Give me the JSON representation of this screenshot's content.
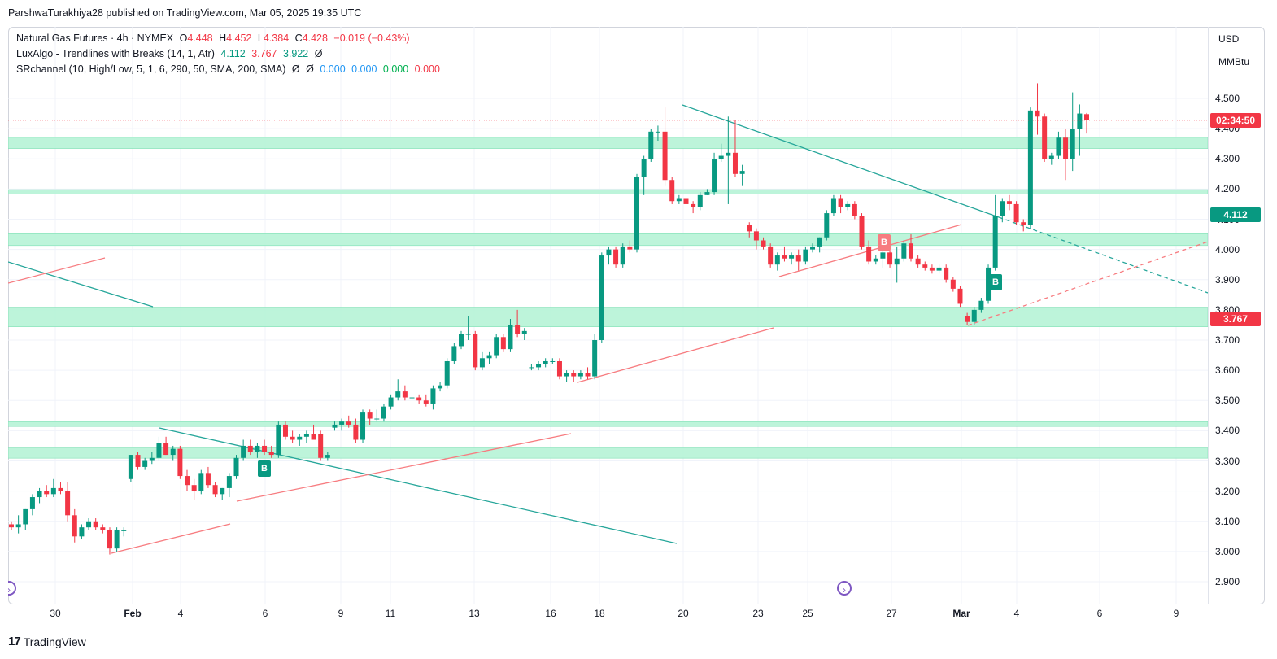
{
  "header": {
    "publisher_line": "ParshwaTurakhiya28 published on TradingView.com, Mar 05, 2025 19:35 UTC"
  },
  "legend": {
    "symbol": "Natural Gas Futures · 4h · NYMEX",
    "o_label": "O",
    "o_value": "4.448",
    "h_label": "H",
    "h_value": "4.452",
    "l_label": "L",
    "l_value": "4.384",
    "c_label": "C",
    "c_value": "4.428",
    "change": "−0.019 (−0.43%)",
    "indicator1_name": "LuxAlgo - Trendlines with Breaks (14, 1, Atr)",
    "indicator1_v1": "4.112",
    "indicator1_v2": "3.767",
    "indicator1_v3": "3.922",
    "indicator1_v4": "Ø",
    "indicator2_name": "SRchannel (10, High/Low, 5, 1, 6, 290, 50, SMA, 200, SMA)",
    "indicator2_v1": "Ø",
    "indicator2_v2": "Ø",
    "indicator2_v3": "0.000",
    "indicator2_v4": "0.000",
    "indicator2_v5": "0.000",
    "indicator2_v6": "0.000"
  },
  "price_axis": {
    "currency": "USD",
    "unit": "MMBtu",
    "ticks": [
      "4.500",
      "4.400",
      "4.300",
      "4.200",
      "4.100",
      "4.000",
      "3.900",
      "3.800",
      "3.700",
      "3.600",
      "3.500",
      "3.400",
      "3.300",
      "3.200",
      "3.100",
      "3.000",
      "2.900"
    ],
    "countdown": "02:34:50",
    "tag_upper": "4.112",
    "tag_lower": "3.767"
  },
  "time_axis": {
    "labels": [
      "30",
      "Feb",
      "4",
      "6",
      "9",
      "11",
      "13",
      "16",
      "18",
      "20",
      "23",
      "25",
      "27",
      "Mar",
      "4",
      "6",
      "9"
    ]
  },
  "signals": {
    "break_label": "B"
  },
  "footer": {
    "brand": "TradingView",
    "logo_glyph": "17"
  },
  "colors": {
    "up": "#089981",
    "down": "#f23645",
    "zone": "#b2f2d4",
    "trend_down": "#26a69a",
    "trend_up": "#f77c80"
  },
  "chart_data": {
    "type": "candlestick",
    "title": "Natural Gas Futures · 4h · NYMEX",
    "ylim": [
      2.86,
      4.62
    ],
    "support_resistance_zones": [
      [
        4.334,
        4.371
      ],
      [
        4.184,
        4.198
      ],
      [
        4.013,
        4.052
      ],
      [
        3.744,
        3.809
      ],
      [
        3.414,
        3.43
      ],
      [
        3.309,
        3.343
      ]
    ],
    "last_price": 4.428,
    "candles": [
      {
        "x": "Jan 29",
        "o": 3.09,
        "h": 3.1,
        "l": 3.07,
        "c": 3.08
      },
      {
        "x": "Jan 29",
        "o": 3.08,
        "h": 3.12,
        "l": 3.06,
        "c": 3.09
      },
      {
        "x": "Jan 29",
        "o": 3.09,
        "h": 3.14,
        "l": 3.07,
        "c": 3.14
      },
      {
        "x": "Jan 29",
        "o": 3.14,
        "h": 3.19,
        "l": 3.12,
        "c": 3.18
      },
      {
        "x": "Jan 30",
        "o": 3.18,
        "h": 3.21,
        "l": 3.16,
        "c": 3.2
      },
      {
        "x": "Jan 30",
        "o": 3.2,
        "h": 3.22,
        "l": 3.18,
        "c": 3.19
      },
      {
        "x": "Jan 30",
        "o": 3.19,
        "h": 3.24,
        "l": 3.18,
        "c": 3.21
      },
      {
        "x": "Jan 30",
        "o": 3.21,
        "h": 3.23,
        "l": 3.19,
        "c": 3.2
      },
      {
        "x": "Jan 31",
        "o": 3.2,
        "h": 3.23,
        "l": 3.1,
        "c": 3.12
      },
      {
        "x": "Jan 31",
        "o": 3.12,
        "h": 3.14,
        "l": 3.03,
        "c": 3.05
      },
      {
        "x": "Jan 31",
        "o": 3.05,
        "h": 3.09,
        "l": 3.04,
        "c": 3.08
      },
      {
        "x": "Jan 31",
        "o": 3.08,
        "h": 3.11,
        "l": 3.07,
        "c": 3.1
      },
      {
        "x": "Jan 31",
        "o": 3.1,
        "h": 3.11,
        "l": 3.07,
        "c": 3.08
      },
      {
        "x": "Jan 31",
        "o": 3.08,
        "h": 3.09,
        "l": 3.06,
        "c": 3.07
      },
      {
        "x": "Feb 2",
        "o": 3.07,
        "h": 3.08,
        "l": 2.99,
        "c": 3.01
      },
      {
        "x": "Feb 2",
        "o": 3.01,
        "h": 3.08,
        "l": 3.0,
        "c": 3.07
      },
      {
        "x": "Feb 2",
        "o": 3.07,
        "h": 3.08,
        "l": 3.05,
        "c": 3.07
      },
      {
        "x": "Feb 3",
        "o": 3.24,
        "h": 3.32,
        "l": 3.23,
        "c": 3.32
      },
      {
        "x": "Feb 3",
        "o": 3.32,
        "h": 3.33,
        "l": 3.27,
        "c": 3.28
      },
      {
        "x": "Feb 3",
        "o": 3.28,
        "h": 3.31,
        "l": 3.27,
        "c": 3.3
      },
      {
        "x": "Feb 3",
        "o": 3.3,
        "h": 3.33,
        "l": 3.29,
        "c": 3.31
      },
      {
        "x": "Feb 3",
        "o": 3.31,
        "h": 3.38,
        "l": 3.3,
        "c": 3.36
      },
      {
        "x": "Feb 4",
        "o": 3.36,
        "h": 3.38,
        "l": 3.32,
        "c": 3.32
      },
      {
        "x": "Feb 4",
        "o": 3.32,
        "h": 3.35,
        "l": 3.3,
        "c": 3.34
      },
      {
        "x": "Feb 4",
        "o": 3.34,
        "h": 3.35,
        "l": 3.24,
        "c": 3.25
      },
      {
        "x": "Feb 4",
        "o": 3.25,
        "h": 3.27,
        "l": 3.2,
        "c": 3.22
      },
      {
        "x": "Feb 5",
        "o": 3.22,
        "h": 3.24,
        "l": 3.17,
        "c": 3.2
      },
      {
        "x": "Feb 5",
        "o": 3.2,
        "h": 3.27,
        "l": 3.19,
        "c": 3.26
      },
      {
        "x": "Feb 5",
        "o": 3.26,
        "h": 3.28,
        "l": 3.21,
        "c": 3.22
      },
      {
        "x": "Feb 5",
        "o": 3.22,
        "h": 3.23,
        "l": 3.18,
        "c": 3.19
      },
      {
        "x": "Feb 5",
        "o": 3.19,
        "h": 3.21,
        "l": 3.17,
        "c": 3.21
      },
      {
        "x": "Feb 6",
        "o": 3.21,
        "h": 3.26,
        "l": 3.18,
        "c": 3.25
      },
      {
        "x": "Feb 6",
        "o": 3.25,
        "h": 3.32,
        "l": 3.24,
        "c": 3.31
      },
      {
        "x": "Feb 6",
        "o": 3.31,
        "h": 3.37,
        "l": 3.3,
        "c": 3.35
      },
      {
        "x": "Feb 6",
        "o": 3.35,
        "h": 3.37,
        "l": 3.32,
        "c": 3.33
      },
      {
        "x": "Feb 6",
        "o": 3.33,
        "h": 3.36,
        "l": 3.31,
        "c": 3.35
      },
      {
        "x": "Feb 7",
        "o": 3.35,
        "h": 3.37,
        "l": 3.32,
        "c": 3.33
      },
      {
        "x": "Feb 7",
        "o": 3.33,
        "h": 3.35,
        "l": 3.31,
        "c": 3.32
      },
      {
        "x": "Feb 7",
        "o": 3.32,
        "h": 3.43,
        "l": 3.31,
        "c": 3.42
      },
      {
        "x": "Feb 7",
        "o": 3.42,
        "h": 3.43,
        "l": 3.37,
        "c": 3.38
      },
      {
        "x": "Feb 7",
        "o": 3.38,
        "h": 3.4,
        "l": 3.36,
        "c": 3.37
      },
      {
        "x": "Feb 9",
        "o": 3.37,
        "h": 3.39,
        "l": 3.35,
        "c": 3.38
      },
      {
        "x": "Feb 9",
        "o": 3.38,
        "h": 3.4,
        "l": 3.36,
        "c": 3.39
      },
      {
        "x": "Feb 9",
        "o": 3.39,
        "h": 3.42,
        "l": 3.37,
        "c": 3.37
      },
      {
        "x": "Feb 9",
        "o": 3.39,
        "h": 3.4,
        "l": 3.3,
        "c": 3.31
      },
      {
        "x": "Feb 9",
        "o": 3.31,
        "h": 3.33,
        "l": 3.3,
        "c": 3.32
      },
      {
        "x": "Feb 10",
        "o": 3.41,
        "h": 3.43,
        "l": 3.4,
        "c": 3.42
      },
      {
        "x": "Feb 10",
        "o": 3.42,
        "h": 3.44,
        "l": 3.4,
        "c": 3.43
      },
      {
        "x": "Feb 10",
        "o": 3.43,
        "h": 3.45,
        "l": 3.41,
        "c": 3.42
      },
      {
        "x": "Feb 10",
        "o": 3.42,
        "h": 3.44,
        "l": 3.36,
        "c": 3.37
      },
      {
        "x": "Feb 10",
        "o": 3.37,
        "h": 3.47,
        "l": 3.36,
        "c": 3.46
      },
      {
        "x": "Feb 11",
        "o": 3.46,
        "h": 3.47,
        "l": 3.42,
        "c": 3.44
      },
      {
        "x": "Feb 11",
        "o": 3.44,
        "h": 3.47,
        "l": 3.43,
        "c": 3.44
      },
      {
        "x": "Feb 11",
        "o": 3.44,
        "h": 3.49,
        "l": 3.43,
        "c": 3.48
      },
      {
        "x": "Feb 11",
        "o": 3.48,
        "h": 3.52,
        "l": 3.47,
        "c": 3.51
      },
      {
        "x": "Feb 12",
        "o": 3.51,
        "h": 3.57,
        "l": 3.5,
        "c": 3.53
      },
      {
        "x": "Feb 12",
        "o": 3.53,
        "h": 3.55,
        "l": 3.5,
        "c": 3.51
      },
      {
        "x": "Feb 12",
        "o": 3.51,
        "h": 3.53,
        "l": 3.5,
        "c": 3.51
      },
      {
        "x": "Feb 12",
        "o": 3.51,
        "h": 3.52,
        "l": 3.49,
        "c": 3.5
      },
      {
        "x": "Feb 12",
        "o": 3.5,
        "h": 3.52,
        "l": 3.48,
        "c": 3.49
      },
      {
        "x": "Feb 12",
        "o": 3.49,
        "h": 3.55,
        "l": 3.47,
        "c": 3.54
      },
      {
        "x": "Feb 13",
        "o": 3.54,
        "h": 3.56,
        "l": 3.53,
        "c": 3.55
      },
      {
        "x": "Feb 13",
        "o": 3.55,
        "h": 3.64,
        "l": 3.54,
        "c": 3.63
      },
      {
        "x": "Feb 13",
        "o": 3.63,
        "h": 3.69,
        "l": 3.62,
        "c": 3.68
      },
      {
        "x": "Feb 13",
        "o": 3.68,
        "h": 3.73,
        "l": 3.67,
        "c": 3.72
      },
      {
        "x": "Feb 13",
        "o": 3.72,
        "h": 3.78,
        "l": 3.7,
        "c": 3.72
      },
      {
        "x": "Feb 14",
        "o": 3.72,
        "h": 3.73,
        "l": 3.6,
        "c": 3.61
      },
      {
        "x": "Feb 14",
        "o": 3.61,
        "h": 3.66,
        "l": 3.6,
        "c": 3.64
      },
      {
        "x": "Feb 14",
        "o": 3.64,
        "h": 3.66,
        "l": 3.62,
        "c": 3.65
      },
      {
        "x": "Feb 14",
        "o": 3.65,
        "h": 3.72,
        "l": 3.64,
        "c": 3.71
      },
      {
        "x": "Feb 14",
        "o": 3.71,
        "h": 3.72,
        "l": 3.66,
        "c": 3.67
      },
      {
        "x": "Feb 15",
        "o": 3.67,
        "h": 3.77,
        "l": 3.66,
        "c": 3.75
      },
      {
        "x": "Feb 15",
        "o": 3.75,
        "h": 3.8,
        "l": 3.71,
        "c": 3.72
      },
      {
        "x": "Feb 15",
        "o": 3.72,
        "h": 3.74,
        "l": 3.7,
        "c": 3.73
      },
      {
        "x": "Feb 17",
        "o": 3.61,
        "h": 3.62,
        "l": 3.6,
        "c": 3.61
      },
      {
        "x": "Feb 17",
        "o": 3.61,
        "h": 3.63,
        "l": 3.6,
        "c": 3.62
      },
      {
        "x": "Feb 17",
        "o": 3.62,
        "h": 3.64,
        "l": 3.61,
        "c": 3.63
      },
      {
        "x": "Feb 17",
        "o": 3.63,
        "h": 3.64,
        "l": 3.62,
        "c": 3.63
      },
      {
        "x": "Feb 17",
        "o": 3.63,
        "h": 3.64,
        "l": 3.57,
        "c": 3.58
      },
      {
        "x": "Feb 17",
        "o": 3.58,
        "h": 3.6,
        "l": 3.56,
        "c": 3.59
      },
      {
        "x": "Feb 18",
        "o": 3.59,
        "h": 3.6,
        "l": 3.56,
        "c": 3.58
      },
      {
        "x": "Feb 18",
        "o": 3.58,
        "h": 3.6,
        "l": 3.57,
        "c": 3.59
      },
      {
        "x": "Feb 18",
        "o": 3.59,
        "h": 3.61,
        "l": 3.57,
        "c": 3.58
      },
      {
        "x": "Feb 18",
        "o": 3.58,
        "h": 3.72,
        "l": 3.57,
        "c": 3.7
      },
      {
        "x": "Feb 18",
        "o": 3.7,
        "h": 3.99,
        "l": 3.69,
        "c": 3.98
      },
      {
        "x": "Feb 19",
        "o": 3.98,
        "h": 4.01,
        "l": 3.95,
        "c": 4.0
      },
      {
        "x": "Feb 19",
        "o": 4.0,
        "h": 4.01,
        "l": 3.94,
        "c": 3.95
      },
      {
        "x": "Feb 19",
        "o": 3.95,
        "h": 4.02,
        "l": 3.94,
        "c": 4.01
      },
      {
        "x": "Feb 19",
        "o": 4.01,
        "h": 4.03,
        "l": 3.99,
        "c": 4.0
      },
      {
        "x": "Feb 19",
        "o": 4.0,
        "h": 4.25,
        "l": 3.99,
        "c": 4.24
      },
      {
        "x": "Feb 19",
        "o": 4.24,
        "h": 4.31,
        "l": 4.18,
        "c": 4.3
      },
      {
        "x": "Feb 20",
        "o": 4.3,
        "h": 4.4,
        "l": 4.29,
        "c": 4.39
      },
      {
        "x": "Feb 20",
        "o": 4.39,
        "h": 4.41,
        "l": 4.36,
        "c": 4.39
      },
      {
        "x": "Feb 20",
        "o": 4.39,
        "h": 4.47,
        "l": 4.21,
        "c": 4.23
      },
      {
        "x": "Feb 20",
        "o": 4.23,
        "h": 4.24,
        "l": 4.15,
        "c": 4.16
      },
      {
        "x": "Feb 21",
        "o": 4.16,
        "h": 4.18,
        "l": 4.15,
        "c": 4.17
      },
      {
        "x": "Feb 21",
        "o": 4.17,
        "h": 4.18,
        "l": 4.04,
        "c": 4.15
      },
      {
        "x": "Feb 21",
        "o": 4.15,
        "h": 4.16,
        "l": 4.12,
        "c": 4.14
      },
      {
        "x": "Feb 21",
        "o": 4.14,
        "h": 4.19,
        "l": 4.13,
        "c": 4.18
      },
      {
        "x": "Feb 21",
        "o": 4.18,
        "h": 4.2,
        "l": 4.18,
        "c": 4.19
      },
      {
        "x": "Feb 22",
        "o": 4.19,
        "h": 4.32,
        "l": 4.18,
        "c": 4.3
      },
      {
        "x": "Feb 22",
        "o": 4.3,
        "h": 4.35,
        "l": 4.29,
        "c": 4.31
      },
      {
        "x": "Feb 22",
        "o": 4.31,
        "h": 4.44,
        "l": 4.15,
        "c": 4.32
      },
      {
        "x": "Feb 22",
        "o": 4.32,
        "h": 4.43,
        "l": 4.24,
        "c": 4.25
      },
      {
        "x": "Feb 22",
        "o": 4.25,
        "h": 4.28,
        "l": 4.21,
        "c": 4.26
      },
      {
        "x": "Feb 23",
        "o": 4.08,
        "h": 4.09,
        "l": 4.04,
        "c": 4.06
      },
      {
        "x": "Feb 23",
        "o": 4.06,
        "h": 4.07,
        "l": 4.0,
        "c": 4.03
      },
      {
        "x": "Feb 23",
        "o": 4.03,
        "h": 4.04,
        "l": 4.0,
        "c": 4.01
      },
      {
        "x": "Feb 24",
        "o": 4.01,
        "h": 4.02,
        "l": 3.94,
        "c": 3.95
      },
      {
        "x": "Feb 24",
        "o": 3.95,
        "h": 3.99,
        "l": 3.93,
        "c": 3.98
      },
      {
        "x": "Feb 24",
        "o": 3.98,
        "h": 4.01,
        "l": 3.96,
        "c": 3.97
      },
      {
        "x": "Feb 24",
        "o": 3.97,
        "h": 3.99,
        "l": 3.95,
        "c": 3.98
      },
      {
        "x": "Feb 24",
        "o": 3.98,
        "h": 4.0,
        "l": 3.93,
        "c": 3.96
      },
      {
        "x": "Feb 25",
        "o": 3.96,
        "h": 4.01,
        "l": 3.95,
        "c": 4.0
      },
      {
        "x": "Feb 25",
        "o": 4.0,
        "h": 4.02,
        "l": 3.99,
        "c": 4.01
      },
      {
        "x": "Feb 25",
        "o": 4.01,
        "h": 4.04,
        "l": 3.99,
        "c": 4.04
      },
      {
        "x": "Feb 25",
        "o": 4.04,
        "h": 4.13,
        "l": 4.03,
        "c": 4.12
      },
      {
        "x": "Feb 25",
        "o": 4.12,
        "h": 4.18,
        "l": 4.11,
        "c": 4.17
      },
      {
        "x": "Feb 26",
        "o": 4.17,
        "h": 4.18,
        "l": 4.12,
        "c": 4.14
      },
      {
        "x": "Feb 26",
        "o": 4.14,
        "h": 4.16,
        "l": 4.13,
        "c": 4.15
      },
      {
        "x": "Feb 26",
        "o": 4.15,
        "h": 4.16,
        "l": 4.1,
        "c": 4.11
      },
      {
        "x": "Feb 26",
        "o": 4.11,
        "h": 4.12,
        "l": 4.0,
        "c": 4.01
      },
      {
        "x": "Feb 26",
        "o": 4.01,
        "h": 4.03,
        "l": 3.95,
        "c": 3.96
      },
      {
        "x": "Feb 27",
        "o": 3.96,
        "h": 3.98,
        "l": 3.95,
        "c": 3.97
      },
      {
        "x": "Feb 27",
        "o": 3.97,
        "h": 4.0,
        "l": 3.94,
        "c": 3.99
      },
      {
        "x": "Feb 27",
        "o": 3.99,
        "h": 4.0,
        "l": 3.94,
        "c": 3.95
      },
      {
        "x": "Feb 27",
        "o": 3.95,
        "h": 4.01,
        "l": 3.89,
        "c": 3.97
      },
      {
        "x": "Feb 27",
        "o": 3.97,
        "h": 4.03,
        "l": 3.96,
        "c": 4.02
      },
      {
        "x": "Feb 27",
        "o": 4.02,
        "h": 4.05,
        "l": 3.96,
        "c": 3.97
      },
      {
        "x": "Feb 28",
        "o": 3.97,
        "h": 3.98,
        "l": 3.94,
        "c": 3.95
      },
      {
        "x": "Feb 28",
        "o": 3.95,
        "h": 3.96,
        "l": 3.93,
        "c": 3.94
      },
      {
        "x": "Feb 28",
        "o": 3.94,
        "h": 3.95,
        "l": 3.92,
        "c": 3.93
      },
      {
        "x": "Feb 28",
        "o": 3.93,
        "h": 3.95,
        "l": 3.92,
        "c": 3.94
      },
      {
        "x": "Feb 28",
        "o": 3.94,
        "h": 3.95,
        "l": 3.89,
        "c": 3.9
      },
      {
        "x": "Mar 1",
        "o": 3.9,
        "h": 3.91,
        "l": 3.86,
        "c": 3.87
      },
      {
        "x": "Mar 1",
        "o": 3.87,
        "h": 3.88,
        "l": 3.81,
        "c": 3.82
      },
      {
        "x": "Mar 3",
        "o": 3.78,
        "h": 3.79,
        "l": 3.75,
        "c": 3.76
      },
      {
        "x": "Mar 3",
        "o": 3.76,
        "h": 3.81,
        "l": 3.75,
        "c": 3.8
      },
      {
        "x": "Mar 3",
        "o": 3.8,
        "h": 3.84,
        "l": 3.79,
        "c": 3.83
      },
      {
        "x": "Mar 3",
        "o": 3.83,
        "h": 3.95,
        "l": 3.82,
        "c": 3.94
      },
      {
        "x": "Mar 3",
        "o": 3.94,
        "h": 4.18,
        "l": 3.93,
        "c": 4.11
      },
      {
        "x": "Mar 4",
        "o": 4.11,
        "h": 4.17,
        "l": 4.09,
        "c": 4.16
      },
      {
        "x": "Mar 4",
        "o": 4.16,
        "h": 4.18,
        "l": 4.13,
        "c": 4.15
      },
      {
        "x": "Mar 4",
        "o": 4.15,
        "h": 4.16,
        "l": 4.08,
        "c": 4.09
      },
      {
        "x": "Mar 4",
        "o": 4.09,
        "h": 4.1,
        "l": 4.06,
        "c": 4.08
      },
      {
        "x": "Mar 4",
        "o": 4.08,
        "h": 4.47,
        "l": 4.07,
        "c": 4.46
      },
      {
        "x": "Mar 5",
        "o": 4.46,
        "h": 4.55,
        "l": 4.38,
        "c": 4.44
      },
      {
        "x": "Mar 5",
        "o": 4.44,
        "h": 4.45,
        "l": 4.29,
        "c": 4.3
      },
      {
        "x": "Mar 5",
        "o": 4.3,
        "h": 4.32,
        "l": 4.28,
        "c": 4.31
      },
      {
        "x": "Mar 5",
        "o": 4.31,
        "h": 4.39,
        "l": 4.3,
        "c": 4.37
      },
      {
        "x": "Mar 5",
        "o": 4.37,
        "h": 4.4,
        "l": 4.23,
        "c": 4.3
      },
      {
        "x": "Mar 5",
        "o": 4.3,
        "h": 4.52,
        "l": 4.26,
        "c": 4.4
      },
      {
        "x": "Mar 5",
        "o": 4.4,
        "h": 4.48,
        "l": 4.31,
        "c": 4.45
      },
      {
        "x": "Mar 5",
        "o": 4.448,
        "h": 4.452,
        "l": 4.384,
        "c": 4.428
      }
    ]
  }
}
